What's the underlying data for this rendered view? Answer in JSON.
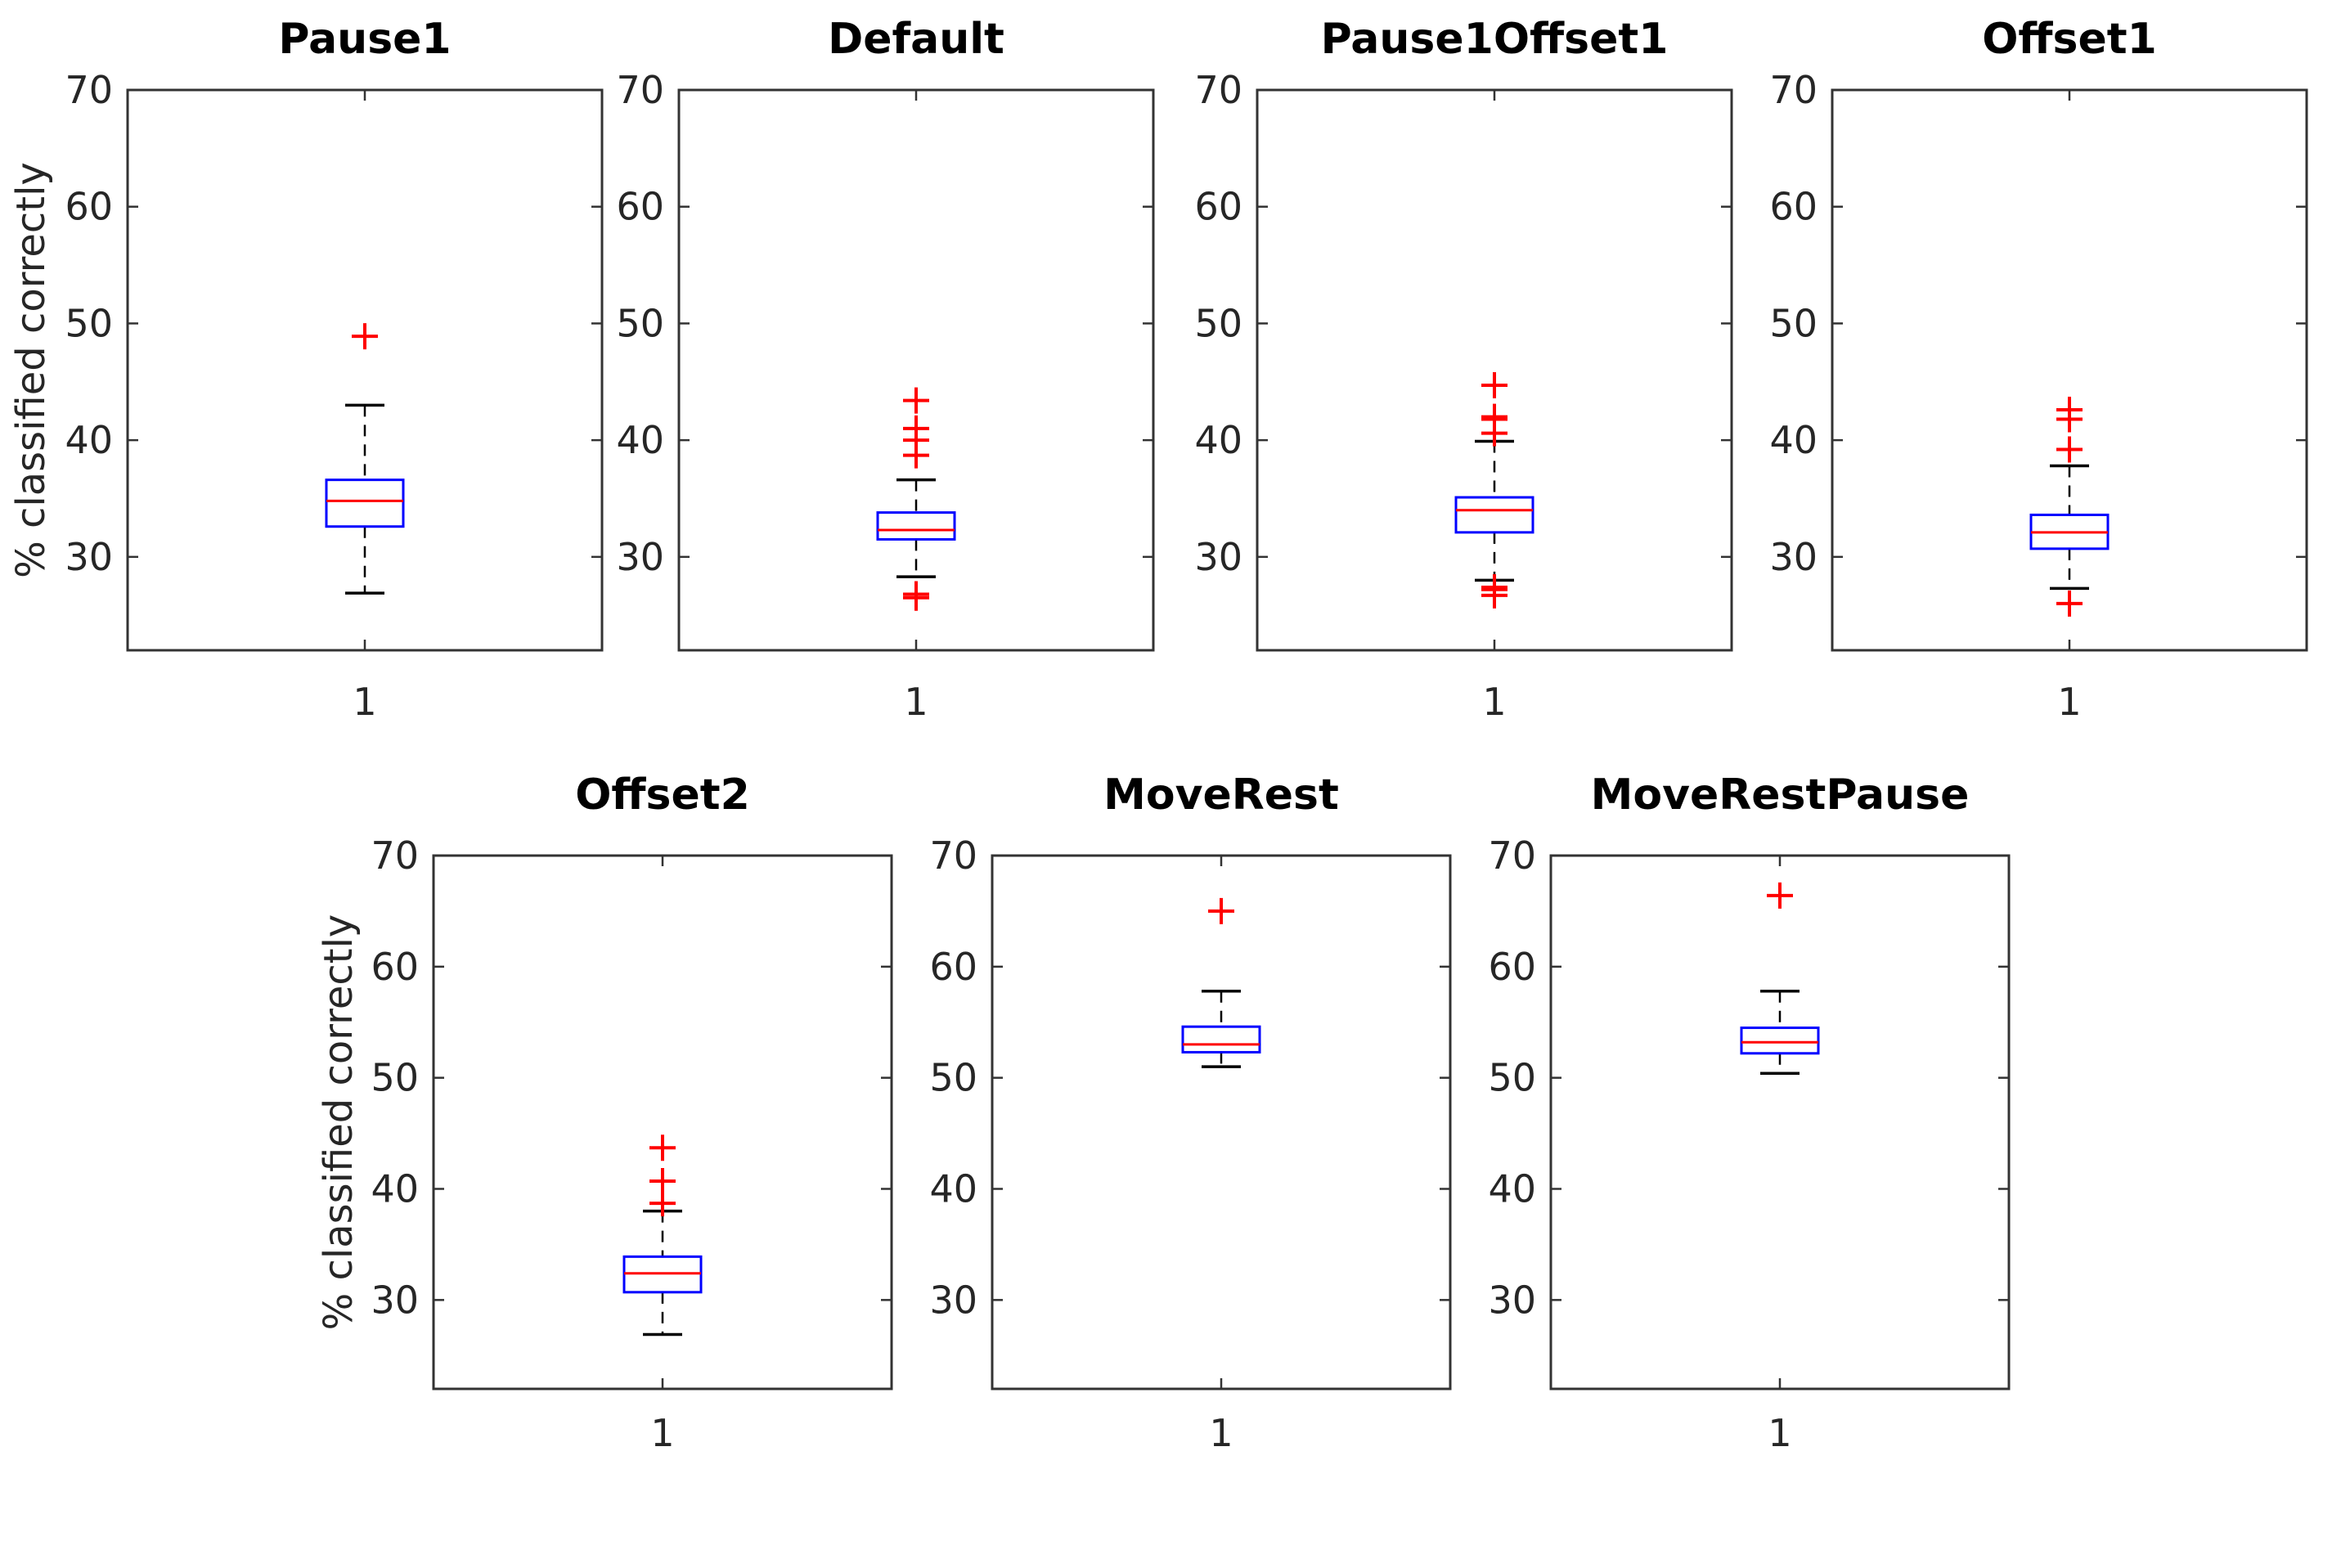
{
  "figure": {
    "background": "#ffffff",
    "ylabel": "% classified correctly",
    "xtick_label": "1",
    "axis_color": "#333333",
    "text_color": "#262626",
    "title_color": "#000000",
    "box_color": "#0000ff",
    "median_color": "#ff0000",
    "whisker_color": "#000000",
    "cap_color": "#000000",
    "outlier_color": "#ff0000",
    "ylim": [
      22,
      70
    ],
    "yticks": [
      30,
      40,
      50,
      60,
      70
    ]
  },
  "chart_data": {
    "type": "boxplot",
    "ylabel": "% classified correctly",
    "ylim": [
      22,
      70
    ],
    "yticks": [
      30,
      40,
      50,
      60,
      70
    ],
    "x_category": "1",
    "legend": "none",
    "grid": false,
    "series": [
      {
        "name": "Pause1",
        "row": 0,
        "whisker_high": 43.0,
        "q3": 36.6,
        "median": 34.8,
        "q1": 32.6,
        "whisker_low": 26.9,
        "outliers_high": [
          48.9
        ],
        "outliers_low": []
      },
      {
        "name": "Default",
        "row": 0,
        "whisker_high": 36.6,
        "q3": 33.8,
        "median": 32.3,
        "q1": 31.5,
        "whisker_low": 28.3,
        "outliers_high": [
          43.4,
          41.0,
          40.0,
          38.7
        ],
        "outliers_low": [
          26.8,
          26.5
        ]
      },
      {
        "name": "Pause1Offset1",
        "row": 0,
        "whisker_high": 39.9,
        "q3": 35.1,
        "median": 34.0,
        "q1": 32.1,
        "whisker_low": 28.0,
        "outliers_high": [
          44.7,
          42.0,
          41.8,
          40.6
        ],
        "outliers_low": [
          27.4,
          27.2,
          26.7
        ]
      },
      {
        "name": "Offset1",
        "row": 0,
        "whisker_high": 37.8,
        "q3": 33.6,
        "median": 32.1,
        "q1": 30.7,
        "whisker_low": 27.3,
        "outliers_high": [
          42.6,
          41.8,
          39.2
        ],
        "outliers_low": [
          26.0
        ]
      },
      {
        "name": "Offset2",
        "row": 1,
        "whisker_high": 38.0,
        "q3": 33.9,
        "median": 32.4,
        "q1": 30.7,
        "whisker_low": 26.9,
        "outliers_high": [
          43.7,
          40.7,
          38.7
        ],
        "outliers_low": []
      },
      {
        "name": "MoveRest",
        "row": 1,
        "whisker_high": 57.8,
        "q3": 54.6,
        "median": 53.0,
        "q1": 52.3,
        "whisker_low": 51.0,
        "outliers_high": [
          65.0
        ],
        "outliers_low": []
      },
      {
        "name": "MoveRestPause",
        "row": 1,
        "whisker_high": 57.8,
        "q3": 54.5,
        "median": 53.2,
        "q1": 52.2,
        "whisker_low": 50.4,
        "outliers_high": [
          66.4
        ],
        "outliers_low": []
      }
    ]
  }
}
